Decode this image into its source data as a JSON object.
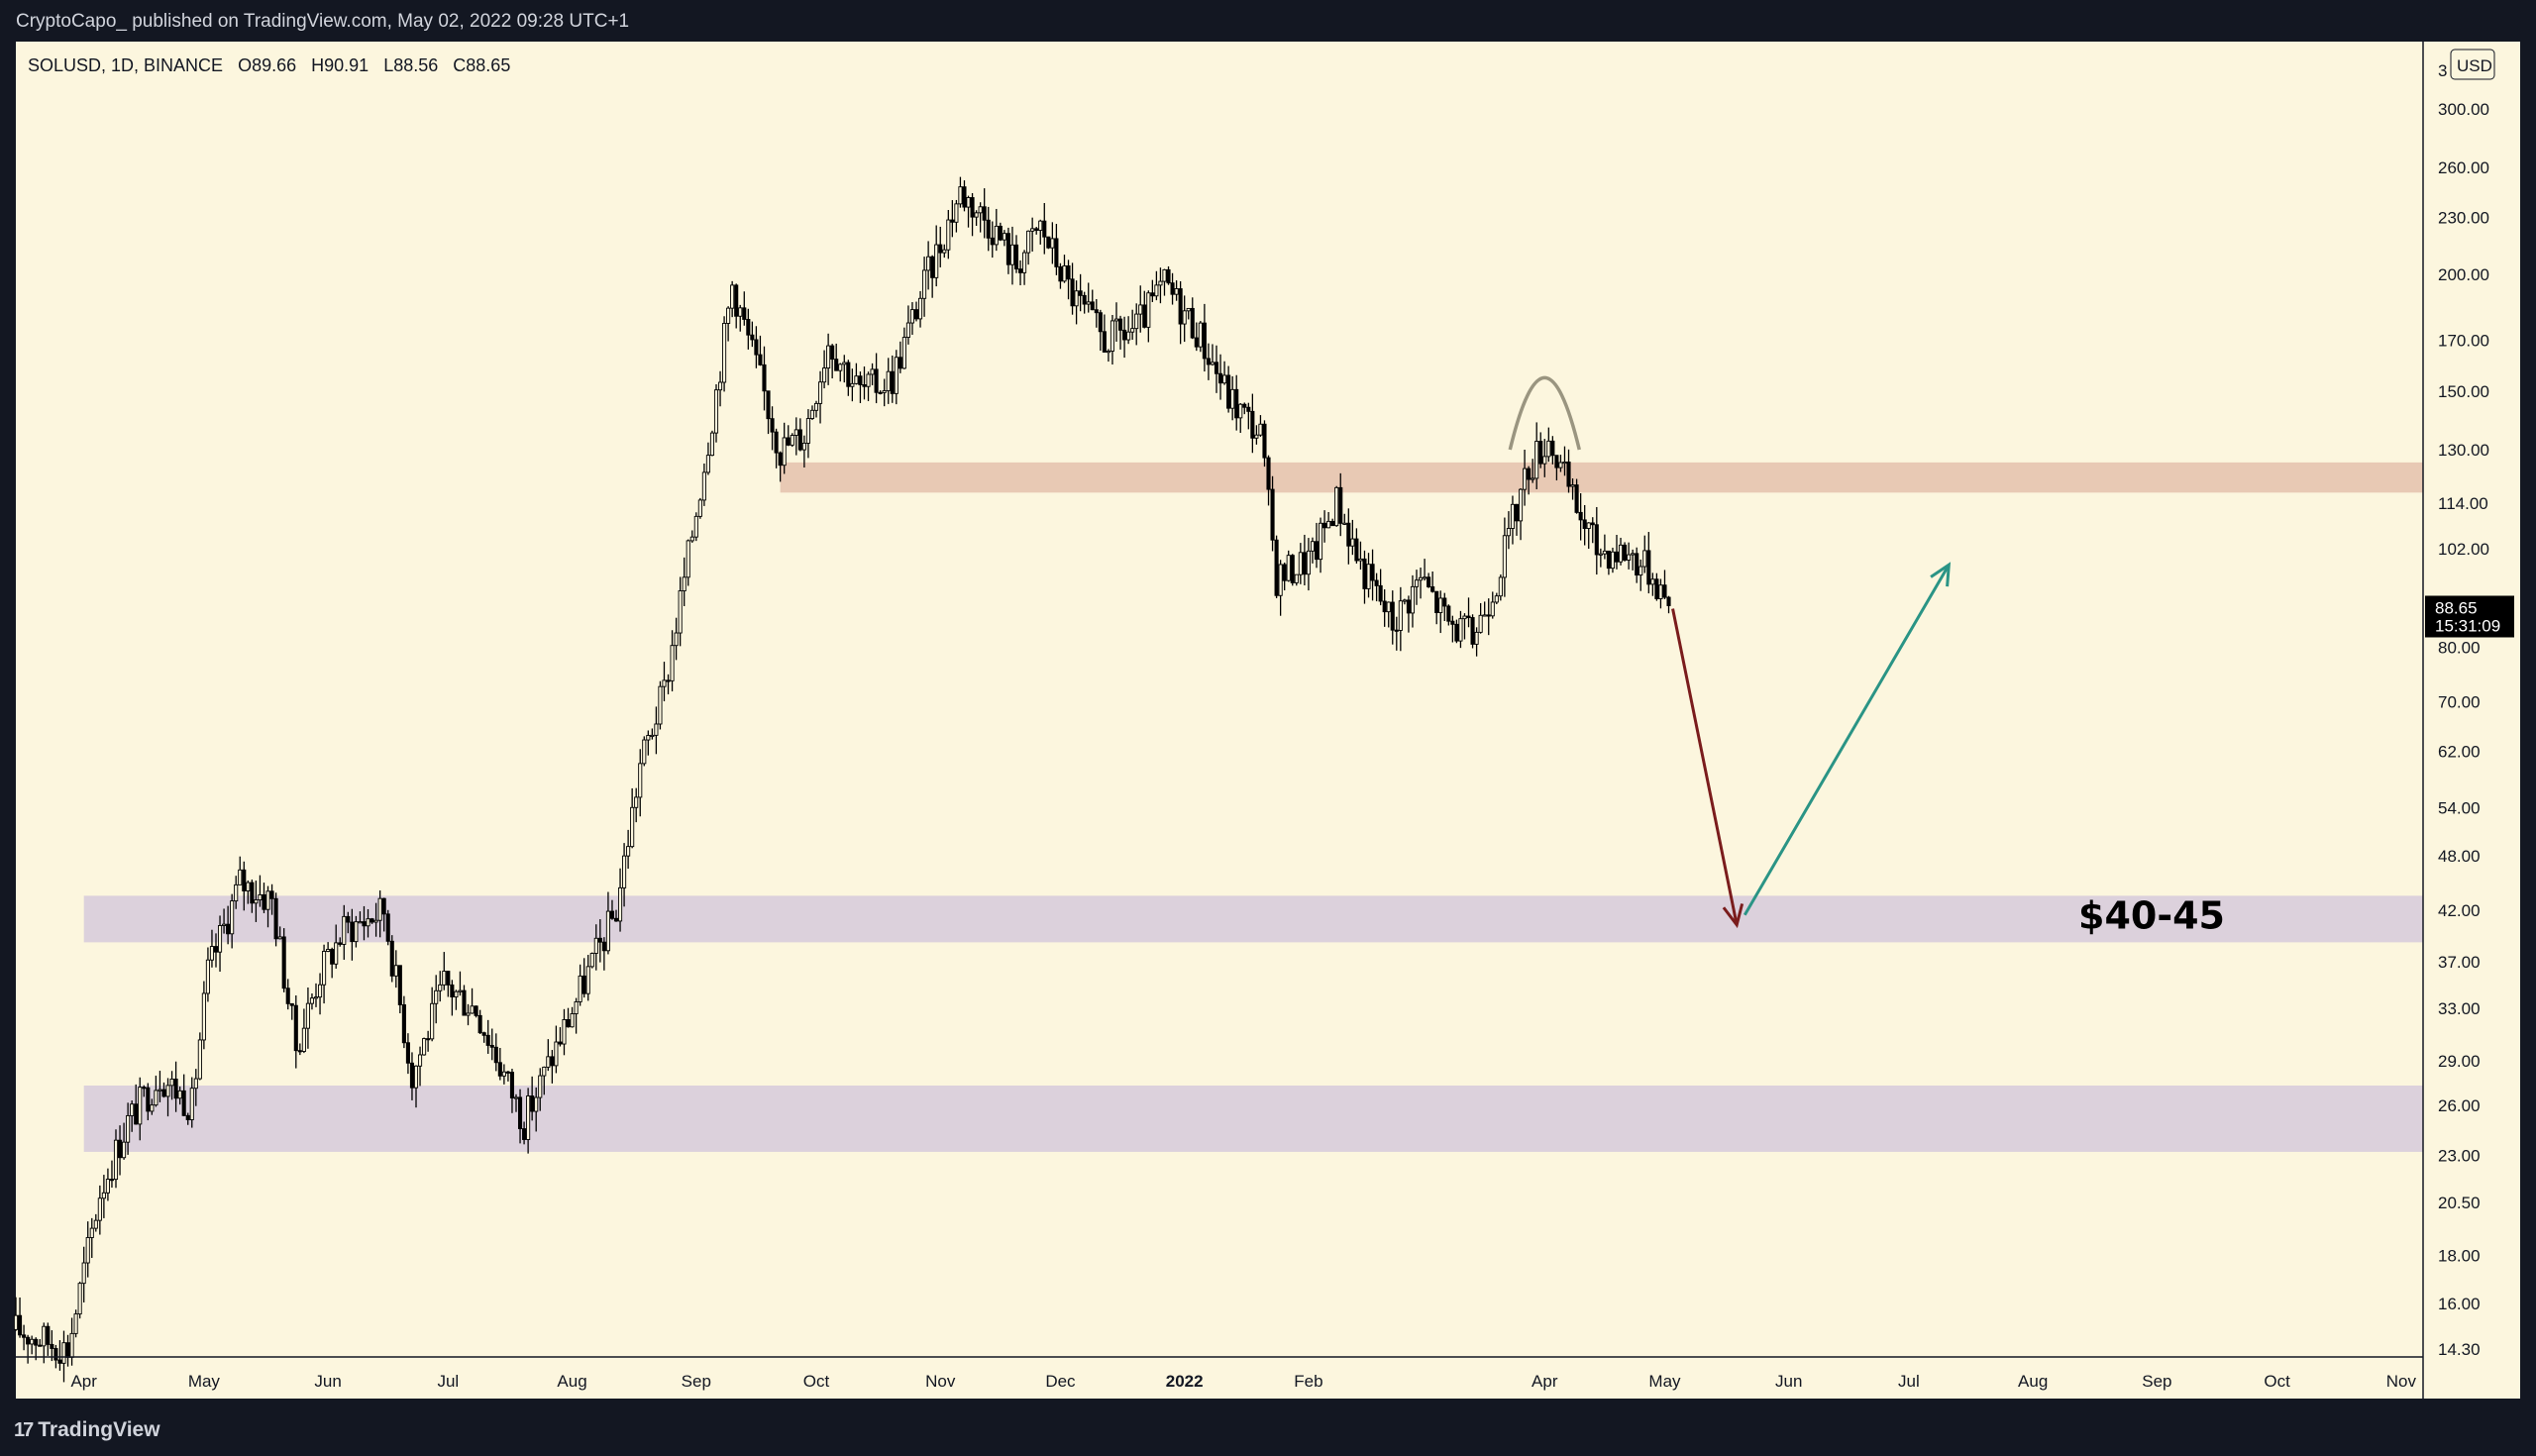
{
  "header": {
    "published_text": "CryptoCapo_  published on TradingView.com, May 02, 2022 09:28 UTC+1"
  },
  "footer": {
    "brand": "TradingView",
    "logo_glyph": "17"
  },
  "chart_data": {
    "type": "candlestick",
    "legend": {
      "symbol": "SOLUSD, 1D, BINANCE",
      "open": "O89.66",
      "high": "H90.91",
      "low": "L88.56",
      "close": "C88.65"
    },
    "currency": "USD",
    "y_scale": "log",
    "ylim": [
      14,
      330
    ],
    "y_ticks": [
      "300.00",
      "260.00",
      "230.00",
      "200.00",
      "170.00",
      "150.00",
      "130.00",
      "114.00",
      "102.00",
      "80.00",
      "70.00",
      "62.00",
      "54.00",
      "48.00",
      "42.00",
      "37.00",
      "33.00",
      "29.00",
      "26.00",
      "23.00",
      "20.50",
      "18.00",
      "16.00",
      "14.30"
    ],
    "x_ticks": [
      "Apr",
      "May",
      "Jun",
      "Jul",
      "Aug",
      "Sep",
      "Oct",
      "Nov",
      "Dec",
      "2022",
      "Feb",
      "Apr",
      "May",
      "Jun",
      "Jul",
      "Aug",
      "Sep",
      "Oct",
      "Nov"
    ],
    "last_price": {
      "value": "88.65",
      "countdown": "15:31:09",
      "color": "#000000"
    },
    "price_path": [
      {
        "date": "2021-03-15",
        "price": 15
      },
      {
        "date": "2021-03-28",
        "price": 14.3
      },
      {
        "date": "2021-04-05",
        "price": 21
      },
      {
        "date": "2021-04-12",
        "price": 25
      },
      {
        "date": "2021-04-20",
        "price": 28
      },
      {
        "date": "2021-04-28",
        "price": 26
      },
      {
        "date": "2021-05-02",
        "price": 36
      },
      {
        "date": "2021-05-10",
        "price": 45
      },
      {
        "date": "2021-05-18",
        "price": 43
      },
      {
        "date": "2021-05-24",
        "price": 30
      },
      {
        "date": "2021-05-30",
        "price": 36
      },
      {
        "date": "2021-06-05",
        "price": 40
      },
      {
        "date": "2021-06-15",
        "price": 42
      },
      {
        "date": "2021-06-22",
        "price": 28
      },
      {
        "date": "2021-06-30",
        "price": 35
      },
      {
        "date": "2021-07-08",
        "price": 33
      },
      {
        "date": "2021-07-20",
        "price": 25
      },
      {
        "date": "2021-07-28",
        "price": 30
      },
      {
        "date": "2021-08-05",
        "price": 36
      },
      {
        "date": "2021-08-12",
        "price": 42
      },
      {
        "date": "2021-08-18",
        "price": 60
      },
      {
        "date": "2021-08-24",
        "price": 72
      },
      {
        "date": "2021-08-30",
        "price": 100
      },
      {
        "date": "2021-09-06",
        "price": 150
      },
      {
        "date": "2021-09-10",
        "price": 195
      },
      {
        "date": "2021-09-15",
        "price": 165
      },
      {
        "date": "2021-09-22",
        "price": 130
      },
      {
        "date": "2021-09-28",
        "price": 135
      },
      {
        "date": "2021-10-04",
        "price": 170
      },
      {
        "date": "2021-10-12",
        "price": 150
      },
      {
        "date": "2021-10-20",
        "price": 155
      },
      {
        "date": "2021-10-28",
        "price": 195
      },
      {
        "date": "2021-11-06",
        "price": 245
      },
      {
        "date": "2021-11-14",
        "price": 225
      },
      {
        "date": "2021-11-20",
        "price": 205
      },
      {
        "date": "2021-11-26",
        "price": 225
      },
      {
        "date": "2021-12-04",
        "price": 190
      },
      {
        "date": "2021-12-12",
        "price": 170
      },
      {
        "date": "2021-12-20",
        "price": 175
      },
      {
        "date": "2021-12-27",
        "price": 195
      },
      {
        "date": "2022-01-04",
        "price": 175
      },
      {
        "date": "2022-01-12",
        "price": 148
      },
      {
        "date": "2022-01-20",
        "price": 135
      },
      {
        "date": "2022-01-24",
        "price": 95
      },
      {
        "date": "2022-02-02",
        "price": 100
      },
      {
        "date": "2022-02-08",
        "price": 115
      },
      {
        "date": "2022-02-14",
        "price": 98
      },
      {
        "date": "2022-02-22",
        "price": 85
      },
      {
        "date": "2022-03-01",
        "price": 95
      },
      {
        "date": "2022-03-08",
        "price": 85
      },
      {
        "date": "2022-03-14",
        "price": 82
      },
      {
        "date": "2022-03-20",
        "price": 95
      },
      {
        "date": "2022-03-28",
        "price": 125
      },
      {
        "date": "2022-04-02",
        "price": 134
      },
      {
        "date": "2022-04-08",
        "price": 115
      },
      {
        "date": "2022-04-14",
        "price": 102
      },
      {
        "date": "2022-04-22",
        "price": 101
      },
      {
        "date": "2022-04-28",
        "price": 96
      },
      {
        "date": "2022-05-02",
        "price": 88.65
      }
    ],
    "zones": [
      {
        "low": 117,
        "high": 126,
        "color": "#e8c9b4"
      },
      {
        "low": 38.8,
        "high": 43.5,
        "color": "#dcd1dc"
      },
      {
        "low": 23.2,
        "high": 27.3,
        "color": "#dcd1dc"
      }
    ],
    "zone_label": "$40-45",
    "annotations": {
      "arrow_down": {
        "from_date": "2022-05-03",
        "from_price": 88,
        "to_date": "2022-05-19",
        "to_price": 40.5,
        "color": "#7a1c1c"
      },
      "arrow_up": {
        "from_date": "2022-05-21",
        "from_price": 41.5,
        "to_date": "2022-07-11",
        "to_price": 98,
        "color": "#2a9485"
      },
      "arc": {
        "color": "#9a9580"
      }
    }
  }
}
